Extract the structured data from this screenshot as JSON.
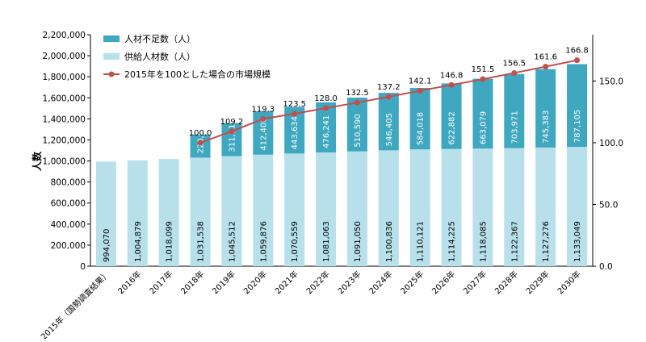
{
  "chart_data": {
    "type": "bar",
    "stacked": true,
    "categories": [
      "2015年（国勢調査結果）",
      "2016年",
      "2017年",
      "2018年",
      "2019年",
      "2020年",
      "2021年",
      "2022年",
      "2023年",
      "2024年",
      "2025年",
      "2026年",
      "2027年",
      "2028年",
      "2029年",
      "2030年"
    ],
    "series": [
      {
        "name": "供給人材数（人）",
        "type": "bar",
        "color": "#b7e0ea",
        "values": [
          994070,
          1004879,
          1018099,
          1031538,
          1045512,
          1059876,
          1070559,
          1081063,
          1091050,
          1100836,
          1110121,
          1114225,
          1118085,
          1122367,
          1127276,
          1133049
        ],
        "labels": [
          "994,070",
          "1,004,879",
          "1,018,099",
          "1,031,538",
          "1,045,512",
          "1,059,876",
          "1,070,559",
          "1,081,063",
          "1,091,050",
          "1,100,836",
          "1,110,121",
          "1,114,225",
          "1,118,085",
          "1,122,367",
          "1,127,276",
          "1,133,049"
        ]
      },
      {
        "name": "人材不足数（人）",
        "type": "bar",
        "color": "#3fa7c0",
        "values": [
          null,
          null,
          null,
          220000,
          311915,
          412400,
          443634,
          476241,
          510590,
          546405,
          584018,
          622882,
          663079,
          703971,
          745383,
          787105
        ],
        "labels": [
          "",
          "",
          "",
          "220,000",
          "311,915",
          "412,400",
          "443,634",
          "476,241",
          "510,590",
          "546,405",
          "584,018",
          "622,882",
          "663,079",
          "703,971",
          "745,383",
          "787,105"
        ]
      },
      {
        "name": "2015年を100とした場合の市場規模",
        "type": "line",
        "axis": "right",
        "color": "#c0504d",
        "values": [
          null,
          null,
          null,
          100.0,
          109.2,
          119.3,
          123.5,
          128.0,
          132.5,
          137.2,
          142.1,
          146.8,
          151.5,
          156.5,
          161.6,
          166.8
        ],
        "labels": [
          "",
          "",
          "",
          "100.0",
          "109.2",
          "119.3",
          "123.5",
          "128.0",
          "132.5",
          "137.2",
          "142.1",
          "146.8",
          "151.5",
          "156.5",
          "161.6",
          "166.8"
        ]
      }
    ],
    "ylabel": "人数",
    "ylim": [
      0,
      2200000
    ],
    "yticks": [
      0,
      200000,
      400000,
      600000,
      800000,
      1000000,
      1200000,
      1400000,
      1600000,
      1800000,
      2000000,
      2200000
    ],
    "ytick_labels": [
      "0",
      "200,000",
      "400,000",
      "600,000",
      "800,000",
      "1,000,000",
      "1,200,000",
      "1,400,000",
      "1,600,000",
      "1,800,000",
      "2,000,000",
      "2,200,000"
    ],
    "y2lim": [
      0,
      187.5
    ],
    "y2ticks": [
      0,
      50,
      100,
      150
    ],
    "y2tick_labels": [
      "0.0",
      "50.0",
      "100.0",
      "150.0"
    ],
    "legend_position": "top-left",
    "grid": false
  }
}
